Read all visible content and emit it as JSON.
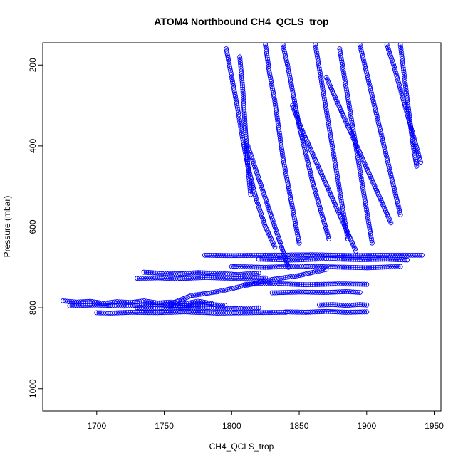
{
  "chart_data": {
    "type": "scatter",
    "title": "ATOM4 Northbound CH4_QCLS_trop",
    "xlabel": "CH4_QCLS_trop",
    "ylabel": "Pressure (mbar)",
    "xlim": [
      1660,
      1955
    ],
    "ylim": [
      1055,
      145
    ],
    "y_inverted": true,
    "x_ticks": [
      "1700",
      "1750",
      "1800",
      "1850",
      "1900",
      "1950"
    ],
    "x_tick_values": [
      1700,
      1750,
      1800,
      1850,
      1900,
      1950
    ],
    "y_ticks": [
      "200",
      "400",
      "600",
      "800",
      "1000"
    ],
    "y_tick_values": [
      200,
      400,
      600,
      800,
      1000
    ],
    "marker": "open-circle",
    "connected": true,
    "grid": false,
    "color": "#0000ff",
    "series": [
      {
        "profiles": [
          {
            "x": [
              1675,
              1685,
              1695,
              1705,
              1715,
              1725,
              1735,
              1745,
              1755,
              1765,
              1775,
              1785
            ],
            "y": [
              783,
              786,
              784,
              789,
              785,
              787,
              783,
              788,
              786,
              790,
              784,
              789
            ]
          },
          {
            "x": [
              1680,
              1700,
              1720,
              1740,
              1760,
              1780,
              1795
            ],
            "y": [
              795,
              793,
              796,
              792,
              795,
              791,
              794
            ]
          },
          {
            "x": [
              1700,
              1710,
              1725,
              1745,
              1765,
              1790,
              1815,
              1840
            ],
            "y": [
              812,
              813,
              811,
              812,
              810,
              813,
              812,
              811
            ]
          },
          {
            "x": [
              1730,
              1745,
              1760,
              1780,
              1800,
              1820
            ],
            "y": [
              800,
              801,
              799,
              800,
              802,
              800
            ]
          },
          {
            "x": [
              1735,
              1745,
              1760,
              1775,
              1790,
              1805,
              1820
            ],
            "y": [
              712,
              714,
              716,
              713,
              715,
              718,
              714
            ]
          },
          {
            "x": [
              1730,
              1745,
              1760,
              1780,
              1800,
              1825
            ],
            "y": [
              727,
              726,
              728,
              725,
              727,
              726
            ]
          },
          {
            "x": [
              1780,
              1800,
              1830,
              1860,
              1890,
              1915,
              1941
            ],
            "y": [
              670,
              671,
              670,
              669,
              671,
              670,
              670
            ]
          },
          {
            "x": [
              1800,
              1825,
              1850,
              1875,
              1900,
              1925
            ],
            "y": [
              698,
              700,
              697,
              699,
              701,
              698
            ]
          },
          {
            "x": [
              1820,
              1845,
              1870,
              1895,
              1915,
              1930
            ],
            "y": [
              680,
              682,
              679,
              681,
              680,
              682
            ]
          },
          {
            "x": [
              1810,
              1830,
              1855,
              1880,
              1900
            ],
            "y": [
              742,
              740,
              743,
              741,
              742
            ]
          },
          {
            "x": [
              1830,
              1850,
              1870,
              1885,
              1895
            ],
            "y": [
              763,
              761,
              762,
              760,
              762
            ]
          },
          {
            "x": [
              1840,
              1855,
              1870,
              1885,
              1900
            ],
            "y": [
              810,
              811,
              809,
              811,
              810
            ]
          },
          {
            "x": [
              1755,
              1770,
              1790,
              1810,
              1830,
              1850,
              1870
            ],
            "y": [
              790,
              770,
              760,
              745,
              730,
              720,
              705
            ]
          },
          {
            "x": [
              1865,
              1875,
              1885,
              1895,
              1900
            ],
            "y": [
              793,
              792,
              794,
              792,
              793
            ]
          },
          {
            "x": [
              1806,
              1808,
              1810,
              1812,
              1814
            ],
            "y": [
              180,
              250,
              350,
              450,
              520
            ]
          },
          {
            "x": [
              1796,
              1800,
              1804,
              1808,
              1812,
              1818,
              1825,
              1832
            ],
            "y": [
              160,
              230,
              300,
              380,
              450,
              530,
              600,
              650
            ]
          },
          {
            "x": [
              1825,
              1828,
              1832,
              1835,
              1838,
              1842,
              1846,
              1850
            ],
            "y": [
              150,
              220,
              290,
              360,
              430,
              500,
              570,
              640
            ]
          },
          {
            "x": [
              1838,
              1842,
              1846,
              1850,
              1855,
              1860,
              1866,
              1872
            ],
            "y": [
              150,
              210,
              280,
              350,
              420,
              490,
              560,
              630
            ]
          },
          {
            "x": [
              1862,
              1866,
              1870,
              1874,
              1878,
              1882,
              1886
            ],
            "y": [
              150,
              230,
              310,
              390,
              470,
              550,
              630
            ]
          },
          {
            "x": [
              1880,
              1884,
              1888,
              1892,
              1896,
              1900,
              1904
            ],
            "y": [
              160,
              240,
              320,
              400,
              480,
              560,
              640
            ]
          },
          {
            "x": [
              1895,
              1900,
              1905,
              1910,
              1915,
              1920,
              1925
            ],
            "y": [
              150,
              220,
              290,
              360,
              430,
              500,
              570
            ]
          },
          {
            "x": [
              1915,
              1920,
              1925,
              1930,
              1935,
              1940
            ],
            "y": [
              150,
              200,
              260,
              320,
              380,
              440
            ]
          },
          {
            "x": [
              1925,
              1928,
              1931,
              1934,
              1937
            ],
            "y": [
              150,
              230,
              310,
              390,
              450
            ]
          },
          {
            "x": [
              1845,
              1852,
              1860,
              1868,
              1876,
              1884,
              1892
            ],
            "y": [
              300,
              360,
              420,
              480,
              540,
              600,
              660
            ]
          },
          {
            "x": [
              1812,
              1818,
              1824,
              1830,
              1836,
              1842
            ],
            "y": [
              400,
              460,
              520,
              580,
              640,
              700
            ]
          },
          {
            "x": [
              1870,
              1878,
              1886,
              1894,
              1902,
              1910,
              1918
            ],
            "y": [
              230,
              290,
              350,
              410,
              470,
              530,
              590
            ]
          }
        ]
      }
    ]
  }
}
